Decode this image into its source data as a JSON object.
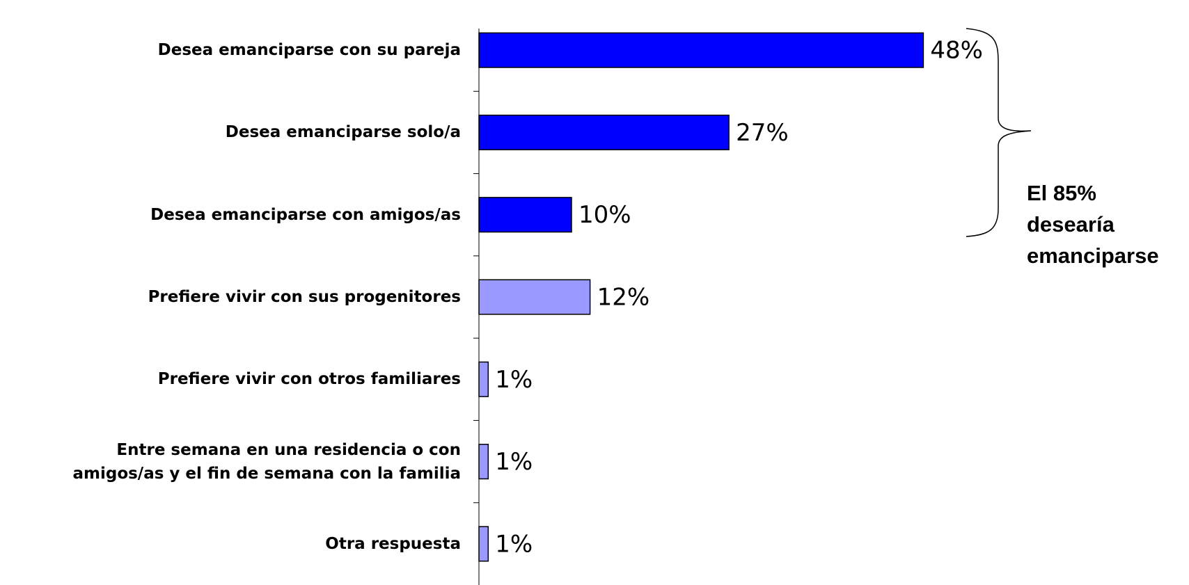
{
  "chart_data": {
    "type": "hbar",
    "categories": [
      "Desea emanciparse con su pareja",
      "Desea emanciparse solo/a",
      "Desea emanciparse con amigos/as",
      "Prefiere vivir con sus progenitores",
      "Prefiere vivir con otros familiares",
      "Entre semana en una residencia o con\namigos/as y el fin de semana con la familia",
      "Otra respuesta"
    ],
    "values": [
      48,
      27,
      10,
      12,
      1,
      1,
      1
    ],
    "value_labels": [
      "48%",
      "27%",
      "10%",
      "12%",
      "1%",
      "1%",
      "1%"
    ],
    "colors": [
      "#0000ff",
      "#0000ff",
      "#0000ff",
      "#9999ff",
      "#9999ff",
      "#9999ff",
      "#9999ff"
    ],
    "xlim": [
      0,
      50
    ],
    "annotation": [
      "El 85%",
      "desearía",
      "emanciparse"
    ]
  }
}
